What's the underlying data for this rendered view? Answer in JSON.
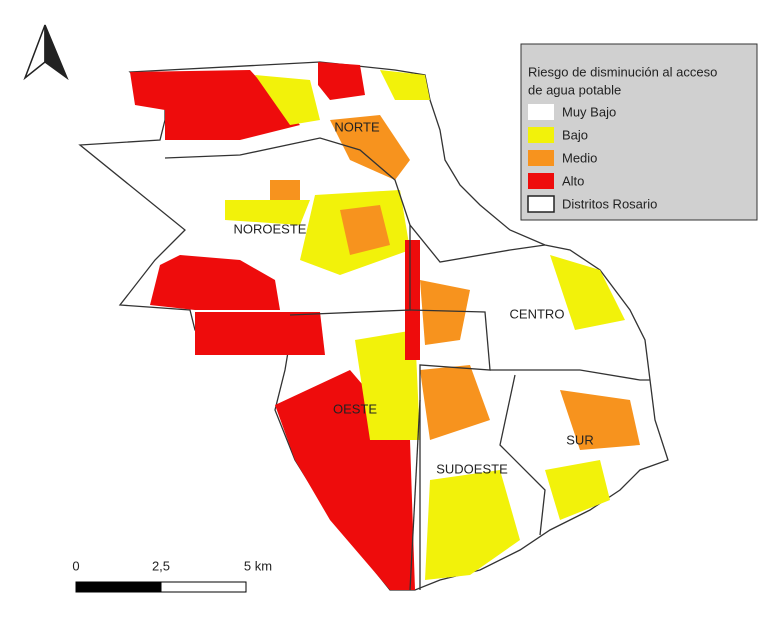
{
  "legend": {
    "title_lines": [
      "Riesgo de disminución al acceso",
      "de agua potable"
    ],
    "items": [
      {
        "label": "Muy Bajo",
        "color": "#ffffff"
      },
      {
        "label": "Bajo",
        "color": "#f2f20a"
      },
      {
        "label": "Medio",
        "color": "#f7931e"
      },
      {
        "label": "Alto",
        "color": "#ee0c0c"
      },
      {
        "label": "Distritos Rosario",
        "color": "#ffffff"
      }
    ]
  },
  "districts": [
    "NORTE",
    "NOROESTE",
    "CENTRO",
    "OESTE",
    "SUDOESTE",
    "SUR"
  ],
  "scale_bar": {
    "labels": [
      "0",
      "2,5",
      "5 km"
    ]
  }
}
